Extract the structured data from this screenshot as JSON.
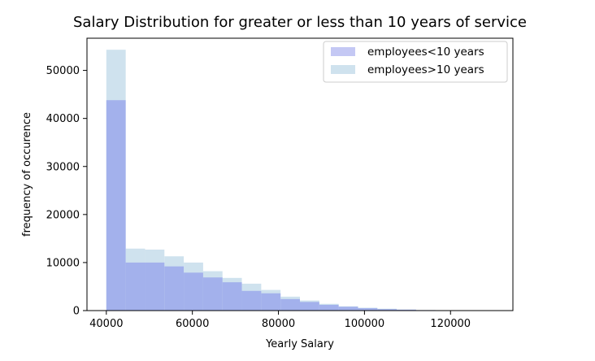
{
  "chart_data": {
    "type": "bar",
    "title": "Salary Distribution for greater or less than 10 years of service",
    "xlabel": "Yearly Salary",
    "ylabel": "frequency of occurence",
    "xlim": [
      35500,
      134500
    ],
    "ylim": [
      0,
      56700
    ],
    "xticks": [
      40000,
      60000,
      80000,
      100000,
      120000
    ],
    "yticks": [
      0,
      10000,
      20000,
      30000,
      40000,
      50000
    ],
    "grid": false,
    "legend_position": "top-right",
    "bin_edges": [
      40000,
      44500,
      49000,
      53500,
      58000,
      62500,
      67000,
      71500,
      76000,
      80500,
      85000,
      89500,
      94000,
      98500,
      103000,
      107500,
      112000,
      116500,
      121000,
      125500,
      130000
    ],
    "series": [
      {
        "name": "employees<10 years",
        "color": "#a3b1ec",
        "values": [
          43800,
          10000,
          10000,
          9200,
          7900,
          6900,
          5900,
          4100,
          3600,
          2400,
          1800,
          1200,
          800,
          500,
          300,
          200,
          100,
          50,
          20,
          10
        ]
      },
      {
        "name": "employees>10 years",
        "color": "#cfe2ee",
        "values": [
          54300,
          12900,
          12700,
          11300,
          10000,
          8200,
          6800,
          5600,
          4300,
          2900,
          2100,
          1400,
          900,
          600,
          400,
          200,
          100,
          50,
          20,
          10
        ]
      }
    ]
  }
}
